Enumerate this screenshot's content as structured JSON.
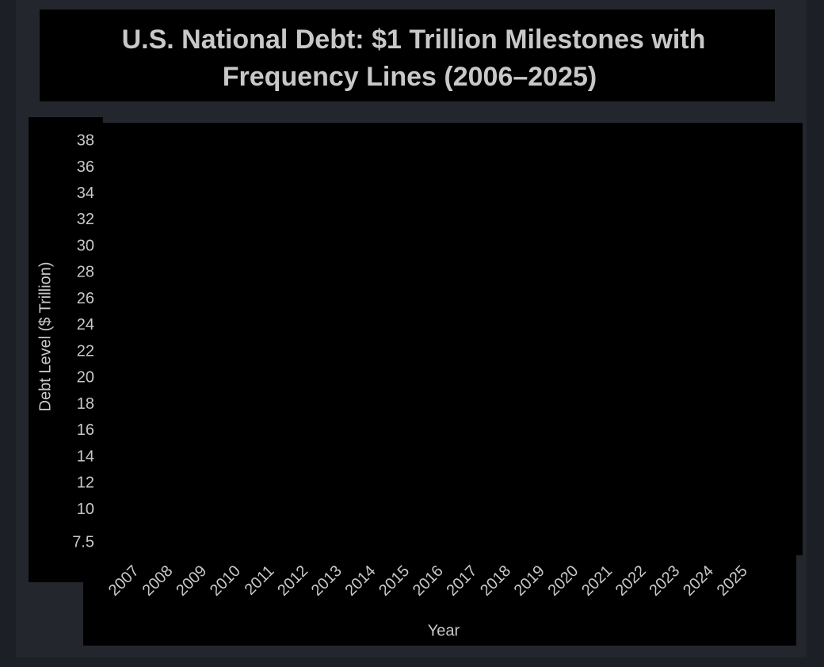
{
  "chart_data": {
    "type": "line",
    "title": "U.S. National Debt: $1 Trillion Milestones with Frequency Lines (2006–2025)",
    "title_lines": [
      "U.S. National Debt: $1 Trillion Milestones with",
      "Frequency Lines (2006–2025)"
    ],
    "xlabel": "Year",
    "ylabel": "Debt Level ($ Trillion)",
    "xlim": [
      2006,
      2026.7
    ],
    "xticks": [
      2007,
      2008,
      2009,
      2010,
      2011,
      2012,
      2013,
      2014,
      2015,
      2016,
      2017,
      2018,
      2019,
      2020,
      2021,
      2022,
      2023,
      2024,
      2025
    ],
    "ylim": [
      6.6,
      39.4
    ],
    "yticks": [
      7.5,
      10,
      12,
      14,
      16,
      18,
      20,
      22,
      24,
      26,
      28,
      30,
      32,
      34,
      36,
      38
    ]
  }
}
